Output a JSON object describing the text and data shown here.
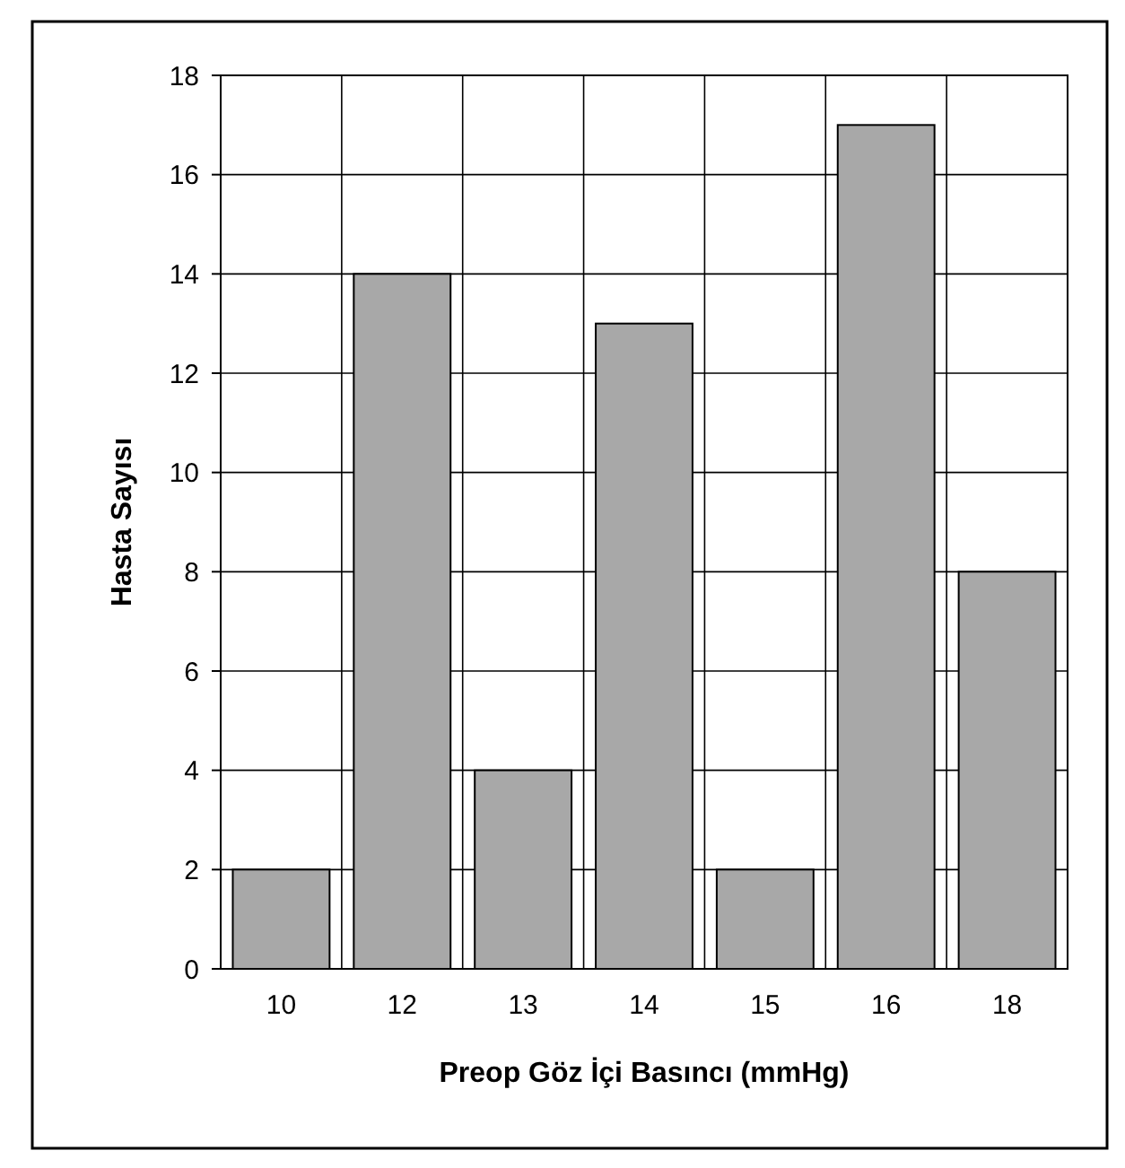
{
  "chart_data": {
    "type": "bar",
    "xlabel": "Preop Göz İçi Basıncı (mmHg)",
    "ylabel": "Hasta Sayısı",
    "categories": [
      "10",
      "12",
      "13",
      "14",
      "15",
      "16",
      "18"
    ],
    "values": [
      2,
      14,
      4,
      13,
      2,
      17,
      8
    ],
    "color": "#a8a8a8",
    "ylim": [
      0,
      18
    ],
    "yticks": [
      0,
      2,
      4,
      6,
      8,
      10,
      12,
      14,
      16,
      18
    ],
    "grid": true
  }
}
